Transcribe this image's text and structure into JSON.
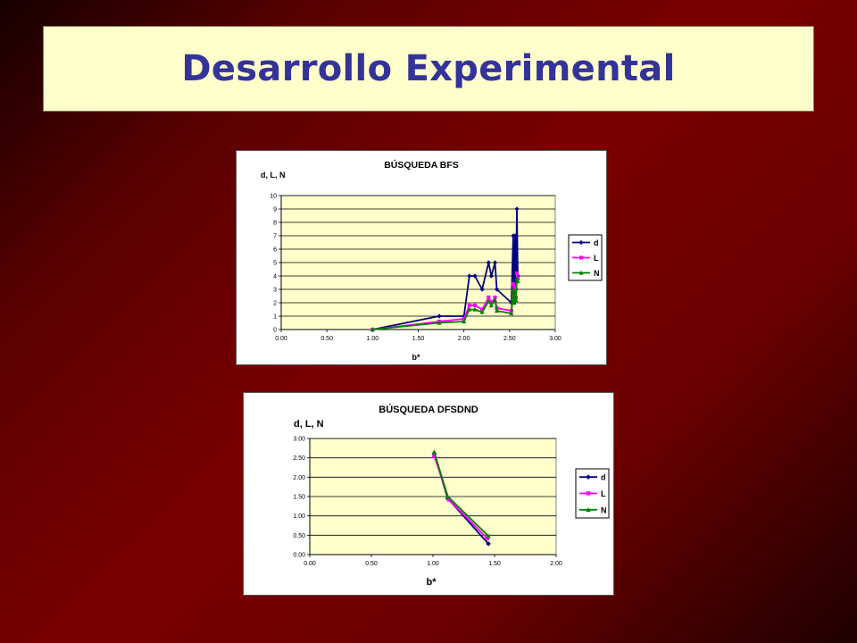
{
  "slide": {
    "title": "Desarrollo Experimental"
  },
  "chart_data": [
    {
      "type": "line",
      "title": "BÚSQUEDA BFS",
      "xlabel": "b*",
      "ylabel": "d, L, N",
      "xlim": [
        0,
        3
      ],
      "ylim": [
        0,
        10
      ],
      "xticks": [
        "0.00",
        "0.50",
        "1.00",
        "1.50",
        "2.00",
        "2.50",
        "3.00"
      ],
      "yticks": [
        "0",
        "1",
        "2",
        "3",
        "4",
        "5",
        "6",
        "7",
        "8",
        "9",
        "10"
      ],
      "grid": true,
      "legend": "right",
      "plot_bg": "#ffffcc",
      "series": [
        {
          "name": "d",
          "color": "#000080",
          "marker": "diamond",
          "points": [
            [
              1.0,
              0
            ],
            [
              1.73,
              1
            ],
            [
              2.0,
              1
            ],
            [
              2.06,
              4
            ],
            [
              2.12,
              4
            ],
            [
              2.2,
              3
            ],
            [
              2.27,
              5
            ],
            [
              2.3,
              4
            ],
            [
              2.34,
              5
            ],
            [
              2.36,
              3
            ],
            [
              2.52,
              2
            ],
            [
              2.54,
              7
            ],
            [
              2.55,
              2
            ],
            [
              2.56,
              7
            ],
            [
              2.57,
              3
            ],
            [
              2.58,
              9
            ],
            [
              2.59,
              4
            ]
          ]
        },
        {
          "name": "L",
          "color": "#ff00ff",
          "marker": "square",
          "points": [
            [
              1.0,
              0
            ],
            [
              1.73,
              0.6
            ],
            [
              2.0,
              0.8
            ],
            [
              2.06,
              1.8
            ],
            [
              2.12,
              1.8
            ],
            [
              2.2,
              1.5
            ],
            [
              2.27,
              2.4
            ],
            [
              2.3,
              2.0
            ],
            [
              2.34,
              2.4
            ],
            [
              2.36,
              1.6
            ],
            [
              2.52,
              1.4
            ],
            [
              2.54,
              3.4
            ],
            [
              2.55,
              2.2
            ],
            [
              2.56,
              3.2
            ],
            [
              2.57,
              2.4
            ],
            [
              2.58,
              4.2
            ],
            [
              2.59,
              3.8
            ]
          ]
        },
        {
          "name": "N",
          "color": "#008000",
          "marker": "triangle",
          "points": [
            [
              1.0,
              0
            ],
            [
              1.73,
              0.5
            ],
            [
              2.0,
              0.6
            ],
            [
              2.06,
              1.5
            ],
            [
              2.12,
              1.5
            ],
            [
              2.2,
              1.3
            ],
            [
              2.27,
              2.1
            ],
            [
              2.3,
              1.8
            ],
            [
              2.34,
              2.2
            ],
            [
              2.36,
              1.4
            ],
            [
              2.52,
              1.2
            ],
            [
              2.54,
              3.0
            ],
            [
              2.55,
              2.0
            ],
            [
              2.56,
              2.8
            ],
            [
              2.57,
              2.2
            ],
            [
              2.58,
              3.8
            ],
            [
              2.59,
              3.6
            ]
          ]
        }
      ]
    },
    {
      "type": "line",
      "title": "BÚSQUEDA DFSDND",
      "xlabel": "b*",
      "ylabel": "d, L, N",
      "xlim": [
        0,
        2
      ],
      "ylim": [
        0,
        3
      ],
      "xticks": [
        "0.00",
        "0.50",
        "1.00",
        "1.50",
        "2.00"
      ],
      "yticks": [
        "0.00",
        "0.50",
        "1.00",
        "1.50",
        "2.00",
        "2.50",
        "3.00"
      ],
      "grid": true,
      "legend": "right",
      "plot_bg": "#ffffcc",
      "series": [
        {
          "name": "d",
          "color": "#000080",
          "marker": "diamond",
          "points": [
            [
              1.01,
              2.6
            ],
            [
              1.12,
              1.45
            ],
            [
              1.45,
              0.28
            ]
          ]
        },
        {
          "name": "L",
          "color": "#ff00ff",
          "marker": "square",
          "points": [
            [
              1.01,
              2.55
            ],
            [
              1.13,
              1.42
            ],
            [
              1.44,
              0.42
            ]
          ]
        },
        {
          "name": "N",
          "color": "#008000",
          "marker": "triangle",
          "points": [
            [
              1.01,
              2.65
            ],
            [
              1.12,
              1.5
            ],
            [
              1.45,
              0.48
            ]
          ]
        }
      ]
    }
  ]
}
